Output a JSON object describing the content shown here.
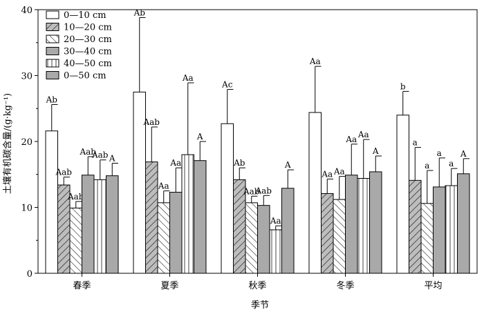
{
  "chart_data": {
    "type": "bar",
    "xlabel": "季节",
    "ylabel": "土壤有机碳含量/(g·kg⁻¹)",
    "ylim": [
      0,
      40
    ],
    "yticks": [
      "0",
      "10",
      "20",
      "30",
      "40"
    ],
    "categories": [
      "春季",
      "夏季",
      "秋季",
      "冬季",
      "平均"
    ],
    "legend_position": "top-left",
    "series": [
      {
        "name": "0—10 cm",
        "pattern": "white",
        "values": [
          21.6,
          27.5,
          22.7,
          24.4,
          24.0
        ],
        "errors": [
          4.0,
          11.3,
          5.2,
          7.0,
          3.6
        ],
        "labels": [
          "Ab",
          "Ab",
          "Ac",
          "Aa",
          "b"
        ]
      },
      {
        "name": "10—20 cm",
        "pattern": "hatch-fwd",
        "values": [
          13.4,
          16.9,
          14.2,
          12.1,
          14.1
        ],
        "errors": [
          1.2,
          5.3,
          1.8,
          2.2,
          5.0
        ],
        "labels": [
          "Aab",
          "Aab",
          "Ab",
          "Aa",
          "a"
        ]
      },
      {
        "name": "20—30 cm",
        "pattern": "hatch-back",
        "values": [
          9.9,
          10.7,
          10.7,
          11.2,
          10.6
        ],
        "errors": [
          1.0,
          1.8,
          1.0,
          3.5,
          5.0
        ],
        "labels": [
          "Aab",
          "Aa",
          "Aab",
          "Aa",
          "a"
        ]
      },
      {
        "name": "30—40 cm",
        "pattern": "gray",
        "values": [
          14.9,
          12.3,
          10.3,
          14.9,
          13.1
        ],
        "errors": [
          2.8,
          3.7,
          1.5,
          4.7,
          4.4
        ],
        "labels": [
          "Aab",
          "Aa",
          "Aab",
          "Aa",
          "a"
        ]
      },
      {
        "name": "40—50 cm",
        "pattern": "vlines",
        "values": [
          14.2,
          18.0,
          6.6,
          14.4,
          13.3
        ],
        "errors": [
          3.0,
          10.9,
          0.6,
          5.9,
          2.6
        ],
        "labels": [
          "Aab",
          "Aa",
          "Aa",
          "Aa",
          "a"
        ]
      },
      {
        "name": "0—50 cm",
        "pattern": "gray",
        "values": [
          14.8,
          17.1,
          12.9,
          15.4,
          15.1
        ],
        "errors": [
          1.9,
          2.9,
          2.8,
          2.4,
          2.3
        ],
        "labels": [
          "A",
          "A",
          "A",
          "A",
          "A"
        ]
      }
    ]
  }
}
